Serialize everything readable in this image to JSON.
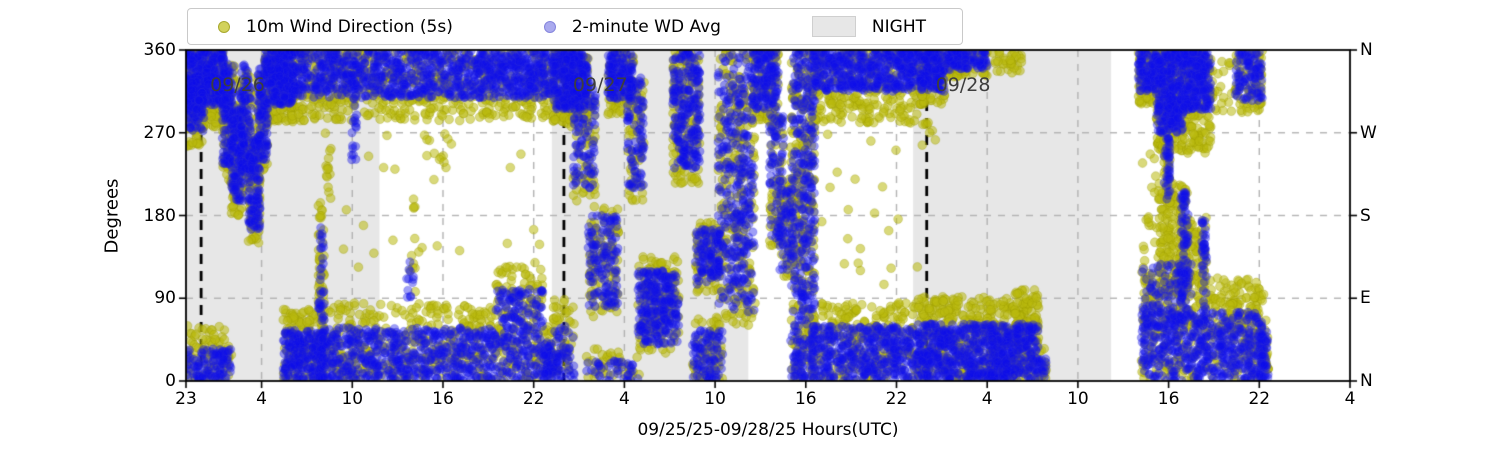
{
  "legend": {
    "items": [
      {
        "label": "10m Wind Direction (5s)",
        "marker": "dot",
        "color": "#d2d25c"
      },
      {
        "label": "2-minute WD Avg",
        "marker": "dot",
        "color": "#aaaaee"
      },
      {
        "label": "NIGHT",
        "marker": "patch",
        "color": "#e7e7e7"
      }
    ]
  },
  "chart_data": {
    "type": "scatter",
    "title": "",
    "xlabel": "09/25/25-09/28/25  Hours(UTC)",
    "ylabel": "Degrees",
    "xlim_hours": [
      0,
      77
    ],
    "x_start": "09/25 23:00 UTC",
    "ylim": [
      0,
      360
    ],
    "grid": true,
    "legend_position": "top-left",
    "x_ticks": [
      {
        "hour": 0,
        "label": "23"
      },
      {
        "hour": 5,
        "label": "4"
      },
      {
        "hour": 11,
        "label": "10"
      },
      {
        "hour": 17,
        "label": "16"
      },
      {
        "hour": 23,
        "label": "22"
      },
      {
        "hour": 29,
        "label": "4"
      },
      {
        "hour": 35,
        "label": "10"
      },
      {
        "hour": 41,
        "label": "16"
      },
      {
        "hour": 47,
        "label": "22"
      },
      {
        "hour": 53,
        "label": "4"
      },
      {
        "hour": 59,
        "label": "10"
      },
      {
        "hour": 65,
        "label": "16"
      },
      {
        "hour": 71,
        "label": "22"
      },
      {
        "hour": 77,
        "label": "4"
      }
    ],
    "y_ticks": [
      {
        "deg": 0,
        "left": "0",
        "right": "N"
      },
      {
        "deg": 90,
        "left": "90",
        "right": "E"
      },
      {
        "deg": 180,
        "left": "180",
        "right": "S"
      },
      {
        "deg": 270,
        "left": "270",
        "right": "W"
      },
      {
        "deg": 360,
        "left": "360",
        "right": "N"
      }
    ],
    "night_bands_hours": [
      [
        0,
        12.8
      ],
      [
        24.2,
        37.2
      ],
      [
        48.1,
        61.2
      ]
    ],
    "date_lines": [
      {
        "hour": 1,
        "label": "09/26"
      },
      {
        "hour": 25,
        "label": "09/27"
      },
      {
        "hour": 49,
        "label": "09/28"
      }
    ],
    "style": {
      "night_color": "#e7e7e7",
      "grid_color": "#b3b3b3",
      "date_line_color": "#000000",
      "spine_color": "#000000",
      "date_label_color": "#3d3d3d"
    },
    "series": [
      {
        "id": "y",
        "name": "10m Wind Direction (5s)",
        "fill": "rgba(186,186,14,0.55)",
        "stroke": "rgba(148,148,0,0.30)",
        "r": 4.4
      },
      {
        "id": "b",
        "name": "2-minute WD Avg",
        "fill": "rgba(12,12,235,0.40)",
        "stroke": "rgba(50,50,215,0.25)",
        "r": 4.2
      }
    ],
    "clusters": [
      {
        "h": [
          0.0,
          2.6
        ],
        "y": [
          275,
          360,
          240
        ],
        "b": [
          300,
          360,
          300
        ]
      },
      {
        "h": [
          0.0,
          1.2
        ],
        "y": [
          255,
          320,
          60
        ],
        "b": [
          270,
          330,
          70
        ]
      },
      {
        "h": [
          0.0,
          3.0
        ],
        "y": [
          0,
          60,
          80
        ],
        "b": [
          0,
          35,
          110
        ]
      },
      {
        "h": [
          2.4,
          3.2
        ],
        "y": [
          215,
          345,
          90
        ],
        "b": [
          235,
          345,
          120
        ]
      },
      {
        "h": [
          3.0,
          3.8
        ],
        "y": [
          180,
          300,
          90
        ],
        "b": [
          195,
          300,
          110
        ]
      },
      {
        "h": [
          3.6,
          4.3
        ],
        "y": [
          210,
          340,
          80
        ],
        "b": [
          225,
          345,
          100
        ]
      },
      {
        "h": [
          4.1,
          4.9
        ],
        "y": [
          150,
          265,
          90
        ],
        "b": [
          165,
          265,
          110
        ]
      },
      {
        "h": [
          4.7,
          5.4
        ],
        "y": [
          225,
          335,
          70
        ],
        "b": [
          240,
          340,
          90
        ]
      },
      {
        "h": [
          5.2,
          7.2
        ],
        "y": [
          280,
          360,
          170
        ],
        "b": [
          300,
          360,
          240
        ]
      },
      {
        "h": [
          6.4,
          9.0
        ],
        "y": [
          0,
          80,
          130
        ],
        "b": [
          0,
          55,
          190
        ]
      },
      {
        "h": [
          8.75,
          9.15
        ],
        "y": [
          0,
          195,
          60
        ],
        "b": [
          0,
          175,
          70
        ]
      },
      {
        "h": [
          9.2,
          9.6
        ],
        "y": [
          195,
          270,
          14
        ]
      },
      {
        "h": [
          7.0,
          24.3
        ],
        "y": [
          283,
          360,
          650
        ],
        "b": [
          308,
          360,
          950
        ]
      },
      {
        "h": [
          10.9,
          11.3
        ],
        "b": [
          225,
          350,
          25
        ]
      },
      {
        "h": [
          9.0,
          20.5
        ],
        "y": [
          0,
          85,
          380
        ],
        "b": [
          0,
          58,
          550
        ]
      },
      {
        "h": [
          20.5,
          23.6
        ],
        "y": [
          0,
          125,
          150
        ],
        "b": [
          0,
          100,
          210
        ]
      },
      {
        "h": [
          23.6,
          24.3
        ],
        "y": [
          0,
          60,
          35
        ],
        "b": [
          0,
          45,
          55
        ]
      },
      {
        "h": [
          9.0,
          24.0
        ],
        "y": [
          85,
          275,
          26
        ]
      },
      {
        "h": [
          15.8,
          17.6
        ],
        "y": [
          235,
          270,
          11
        ]
      },
      {
        "h": [
          14.6,
          15.2
        ],
        "y": [
          90,
          200,
          10
        ],
        "b": [
          90,
          130,
          12
        ]
      },
      {
        "h": [
          24.3,
          26.6
        ],
        "y": [
          275,
          360,
          190
        ],
        "b": [
          295,
          360,
          250
        ]
      },
      {
        "h": [
          24.3,
          25.7
        ],
        "y": [
          10,
          90,
          45
        ],
        "b": [
          0,
          60,
          55
        ]
      },
      {
        "h": [
          25.6,
          27.1
        ],
        "y": [
          195,
          330,
          70
        ],
        "b": [
          210,
          335,
          100
        ]
      },
      {
        "h": [
          26.6,
          28.6
        ],
        "y": [
          70,
          190,
          100
        ],
        "b": [
          80,
          180,
          130
        ]
      },
      {
        "h": [
          27.9,
          29.6
        ],
        "y": [
          290,
          360,
          100
        ],
        "b": [
          305,
          360,
          140
        ]
      },
      {
        "h": [
          29.2,
          30.3
        ],
        "y": [
          195,
          330,
          60
        ],
        "b": [
          210,
          330,
          85
        ]
      },
      {
        "h": [
          29.9,
          32.6
        ],
        "y": [
          30,
          135,
          160
        ],
        "b": [
          40,
          120,
          240
        ]
      },
      {
        "h": [
          26.5,
          30.0
        ],
        "y": [
          0,
          35,
          40
        ],
        "b": [
          0,
          22,
          40
        ]
      },
      {
        "h": [
          32.2,
          34.0
        ],
        "y": [
          215,
          360,
          150
        ],
        "b": [
          230,
          360,
          220
        ]
      },
      {
        "h": [
          33.7,
          35.3
        ],
        "y": [
          95,
          175,
          80
        ],
        "b": [
          105,
          165,
          100
        ]
      },
      {
        "h": [
          33.5,
          35.5
        ],
        "y": [
          0,
          70,
          70
        ],
        "b": [
          0,
          55,
          90
        ]
      },
      {
        "h": [
          35.2,
          37.6
        ],
        "y": [
          60,
          360,
          240
        ],
        "b": [
          75,
          360,
          330
        ]
      },
      {
        "h": [
          37.4,
          39.2
        ],
        "y": [
          275,
          360,
          110
        ],
        "b": [
          295,
          360,
          150
        ]
      },
      {
        "h": [
          38.6,
          39.6
        ],
        "y": [
          140,
          290,
          55
        ],
        "b": [
          155,
          295,
          75
        ]
      },
      {
        "h": [
          39.2,
          40.2
        ],
        "y": [
          110,
          220,
          55
        ],
        "b": [
          120,
          210,
          65
        ]
      },
      {
        "h": [
          40.0,
          41.6
        ],
        "y": [
          0,
          360,
          280
        ],
        "b": [
          0,
          360,
          360
        ]
      },
      {
        "h": [
          41.5,
          48.4
        ],
        "y": [
          280,
          360,
          300
        ],
        "b": [
          315,
          360,
          420
        ]
      },
      {
        "h": [
          41.3,
          48.4
        ],
        "y": [
          0,
          85,
          280
        ],
        "b": [
          0,
          60,
          400
        ]
      },
      {
        "h": [
          37.0,
          48.4
        ],
        "y": [
          70,
          270,
          24
        ]
      },
      {
        "h": [
          48.4,
          50.2
        ],
        "y": [
          300,
          360,
          110
        ],
        "b": [
          315,
          360,
          140
        ]
      },
      {
        "h": [
          50.3,
          51.6
        ],
        "y": [
          330,
          360,
          45
        ],
        "b": [
          338,
          360,
          55
        ]
      },
      {
        "h": [
          51.4,
          53.0
        ],
        "y": [
          332,
          360,
          40
        ],
        "b": [
          340,
          360,
          45
        ]
      },
      {
        "h": [
          53.2,
          55.3
        ],
        "y": [
          335,
          360,
          35
        ]
      },
      {
        "h": [
          48.4,
          56.4
        ],
        "y": [
          0,
          92,
          480
        ],
        "b": [
          0,
          62,
          640
        ]
      },
      {
        "h": [
          54.5,
          56.4
        ],
        "y": [
          50,
          100,
          55
        ]
      },
      {
        "h": [
          56.4,
          56.9
        ],
        "y": [
          0,
          40,
          18
        ],
        "b": [
          0,
          25,
          15
        ]
      },
      {
        "h": [
          48.5,
          50.2
        ],
        "y": [
          250,
          292,
          9
        ]
      },
      {
        "h": [
          63.0,
          64.2
        ],
        "y": [
          300,
          360,
          80
        ],
        "b": [
          315,
          360,
          95
        ]
      },
      {
        "h": [
          64.2,
          66.0
        ],
        "y": [
          250,
          360,
          230
        ],
        "b": [
          270,
          360,
          290
        ]
      },
      {
        "h": [
          64.7,
          65.1
        ],
        "y": [
          185,
          262,
          30
        ],
        "b": [
          195,
          265,
          38
        ]
      },
      {
        "h": [
          64.3,
          65.9
        ],
        "y": [
          95,
          215,
          140
        ]
      },
      {
        "h": [
          65.8,
          66.3
        ],
        "y": [
          90,
          215,
          35
        ],
        "b": [
          90,
          205,
          75
        ]
      },
      {
        "h": [
          66.0,
          67.8
        ],
        "y": [
          245,
          360,
          180
        ],
        "b": [
          295,
          360,
          210
        ]
      },
      {
        "h": [
          66.0,
          67.4
        ],
        "y": [
          100,
          175,
          70
        ]
      },
      {
        "h": [
          67.2,
          67.5
        ],
        "y": [
          60,
          180,
          18
        ],
        "b": [
          60,
          175,
          45
        ]
      },
      {
        "h": [
          67.8,
          69.2
        ],
        "y": [
          285,
          352,
          22
        ]
      },
      {
        "h": [
          63.2,
          71.2
        ],
        "y": [
          0,
          112,
          360
        ],
        "b": [
          0,
          75,
          480
        ]
      },
      {
        "h": [
          63.2,
          66.5
        ],
        "y": [
          60,
          135,
          60
        ],
        "b": [
          58,
          128,
          110
        ]
      },
      {
        "h": [
          71.0,
          71.6
        ],
        "y": [
          0,
          70,
          35
        ],
        "b": [
          0,
          55,
          55
        ]
      },
      {
        "h": [
          63.2,
          64.3
        ],
        "y": [
          140,
          262,
          16
        ]
      },
      {
        "h": [
          69.0,
          71.3
        ],
        "y": [
          40,
          112,
          60
        ]
      },
      {
        "h": [
          69.4,
          71.2
        ],
        "y": [
          290,
          360,
          80
        ],
        "b": [
          305,
          360,
          100
        ]
      }
    ]
  }
}
